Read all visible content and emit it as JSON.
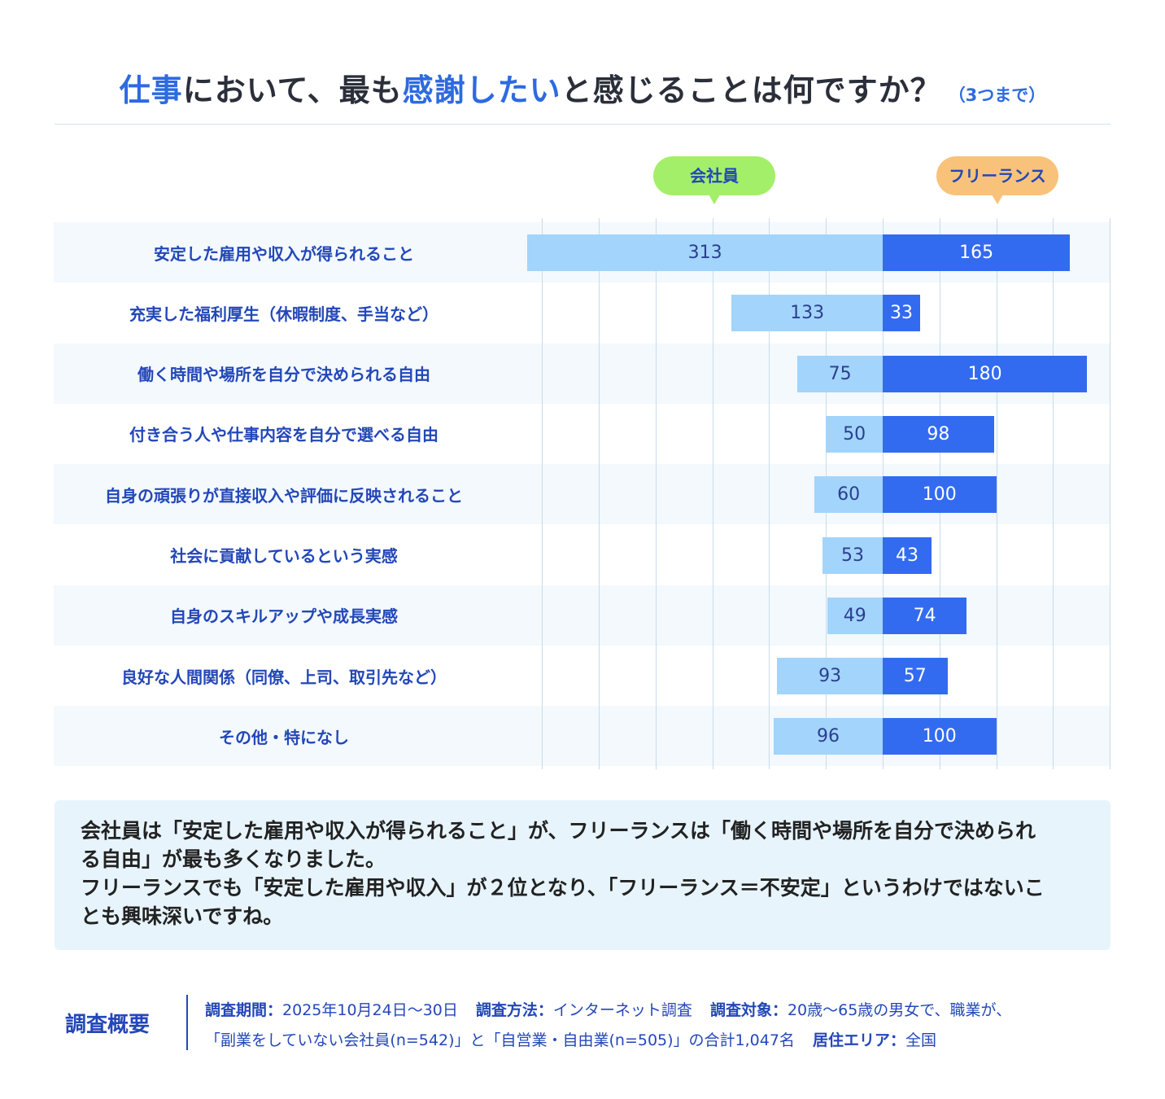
{
  "title": {
    "part1": "仕事",
    "part2": "において、最も",
    "part3": "感謝したい",
    "part4": "と感じることは何ですか？",
    "note": "（3つまで）"
  },
  "legend": {
    "company": "会社員",
    "freelance": "フリーランス"
  },
  "colors": {
    "company_bar": "#a3d4fb",
    "freelance_bar": "#336bf0",
    "company_legend": "#a3ef6a",
    "freelance_legend": "#f9c27a",
    "label_text": "#2347b8",
    "title_accent": "#2e6ae0"
  },
  "chart_data": {
    "type": "bar",
    "orientation": "horizontal-diverging",
    "categories": [
      "安定した雇用や収入が得られること",
      "充実した福利厚生（休暇制度、手当など）",
      "働く時間や場所を自分で決められる自由",
      "付き合う人や仕事内容を自分で選べる自由",
      "自身の頑張りが直接収入や評価に反映されること",
      "社会に貢献しているという実感",
      "自身のスキルアップや成長実感",
      "良好な人間関係（同僚、上司、取引先など）",
      "その他・特になし"
    ],
    "series": [
      {
        "name": "会社員",
        "values": [
          313,
          133,
          75,
          50,
          60,
          53,
          49,
          93,
          96
        ]
      },
      {
        "name": "フリーランス",
        "values": [
          165,
          33,
          180,
          98,
          100,
          43,
          74,
          57,
          100
        ]
      }
    ],
    "grid": true
  },
  "comment": {
    "line1": "会社員は「安定した雇用や収入が得られること」が、フリーランスは「働く時間や場所を自分で決められ",
    "line2": "る自由」が最も多くなりました。",
    "line3": "フリーランスでも「安定した雇用や収入」が２位となり、「フリーランス＝不安定」というわけではないこ",
    "line4": "とも興味深いですね。"
  },
  "survey": {
    "heading": "調査概要",
    "period_label": "調査期間：",
    "period_value": "2025年10月24日～30日",
    "method_label": "調査方法：",
    "method_value": "インターネット調査",
    "target_label": "調査対象：",
    "target_value": "20歳～65歳の男女で、職業が、",
    "target_value_2": "「副業をしていない会社員(n=542)」と「自営業・自由業(n=505)」の合計1,047名",
    "area_label": "居住エリア：",
    "area_value": "全国"
  }
}
